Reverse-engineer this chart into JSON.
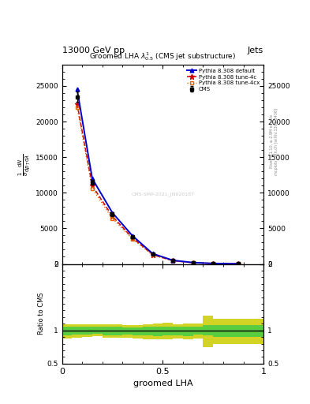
{
  "title": "13000 GeV pp",
  "jets_label": "Jets",
  "plot_title": "Groomed LHA $\\lambda^{1}_{0.5}$ (CMS jet substructure)",
  "xlabel": "groomed LHA",
  "ylabel_lines": [
    "mathrm d$^2$N",
    "mathrm d$p_T$ mathrm d$\\lambda$"
  ],
  "ratio_ylabel": "Ratio to CMS",
  "right_label_top": "Rivet 3.1.10, ≥ 2.9M events",
  "right_label_bottom": "mcplots.cern.ch [arXiv:1306.3436]",
  "watermark": "CMS-SMP-2021_JN920187",
  "x_data": [
    0.075,
    0.15,
    0.25,
    0.35,
    0.45,
    0.55,
    0.65,
    0.75,
    0.875
  ],
  "cms_y": [
    23500,
    11500,
    7000,
    3800,
    1350,
    470,
    175,
    65,
    15
  ],
  "cms_yerr": [
    700,
    350,
    250,
    180,
    70,
    28,
    12,
    6,
    3
  ],
  "pythia_default_y": [
    24500,
    12000,
    7200,
    3950,
    1450,
    510,
    195,
    75,
    18
  ],
  "pythia_4c_y": [
    22500,
    11000,
    6700,
    3650,
    1300,
    460,
    175,
    68,
    16
  ],
  "pythia_4cx_y": [
    22000,
    10600,
    6400,
    3500,
    1250,
    440,
    168,
    65,
    15
  ],
  "ratio_x_edges": [
    0.0,
    0.05,
    0.1,
    0.15,
    0.2,
    0.25,
    0.3,
    0.35,
    0.4,
    0.45,
    0.5,
    0.55,
    0.6,
    0.65,
    0.7,
    0.75,
    0.8,
    0.85,
    0.9,
    0.95,
    1.0
  ],
  "ratio_green_lo": [
    0.93,
    0.94,
    0.94,
    0.95,
    0.93,
    0.93,
    0.94,
    0.93,
    0.92,
    0.91,
    0.92,
    0.93,
    0.91,
    0.94,
    0.93,
    0.9,
    0.9,
    0.9,
    0.9,
    0.9
  ],
  "ratio_green_hi": [
    1.05,
    1.05,
    1.05,
    1.05,
    1.05,
    1.05,
    1.04,
    1.04,
    1.05,
    1.06,
    1.06,
    1.05,
    1.06,
    1.06,
    1.08,
    1.08,
    1.08,
    1.08,
    1.08,
    1.08
  ],
  "ratio_yellow_lo": [
    0.88,
    0.89,
    0.9,
    0.91,
    0.89,
    0.89,
    0.89,
    0.88,
    0.87,
    0.86,
    0.87,
    0.88,
    0.86,
    0.88,
    0.75,
    0.8,
    0.8,
    0.8,
    0.8,
    0.8
  ],
  "ratio_yellow_hi": [
    1.09,
    1.09,
    1.09,
    1.09,
    1.09,
    1.09,
    1.08,
    1.08,
    1.09,
    1.1,
    1.11,
    1.09,
    1.1,
    1.1,
    1.22,
    1.18,
    1.18,
    1.18,
    1.18,
    1.18
  ],
  "color_default": "#0000cc",
  "color_4c": "#cc0000",
  "color_4cx": "#dd6600",
  "color_cms": "#000000",
  "color_green": "#44cc44",
  "color_yellow": "#cccc00",
  "ylim_main": [
    0,
    28000
  ],
  "yticks_main": [
    0,
    5000,
    10000,
    15000,
    20000,
    25000
  ],
  "ylim_ratio": [
    0.5,
    2.0
  ],
  "yticks_ratio": [
    0.5,
    1.0,
    2.0
  ],
  "xlim": [
    0,
    1
  ],
  "xticks": [
    0.0,
    0.5,
    1.0
  ]
}
